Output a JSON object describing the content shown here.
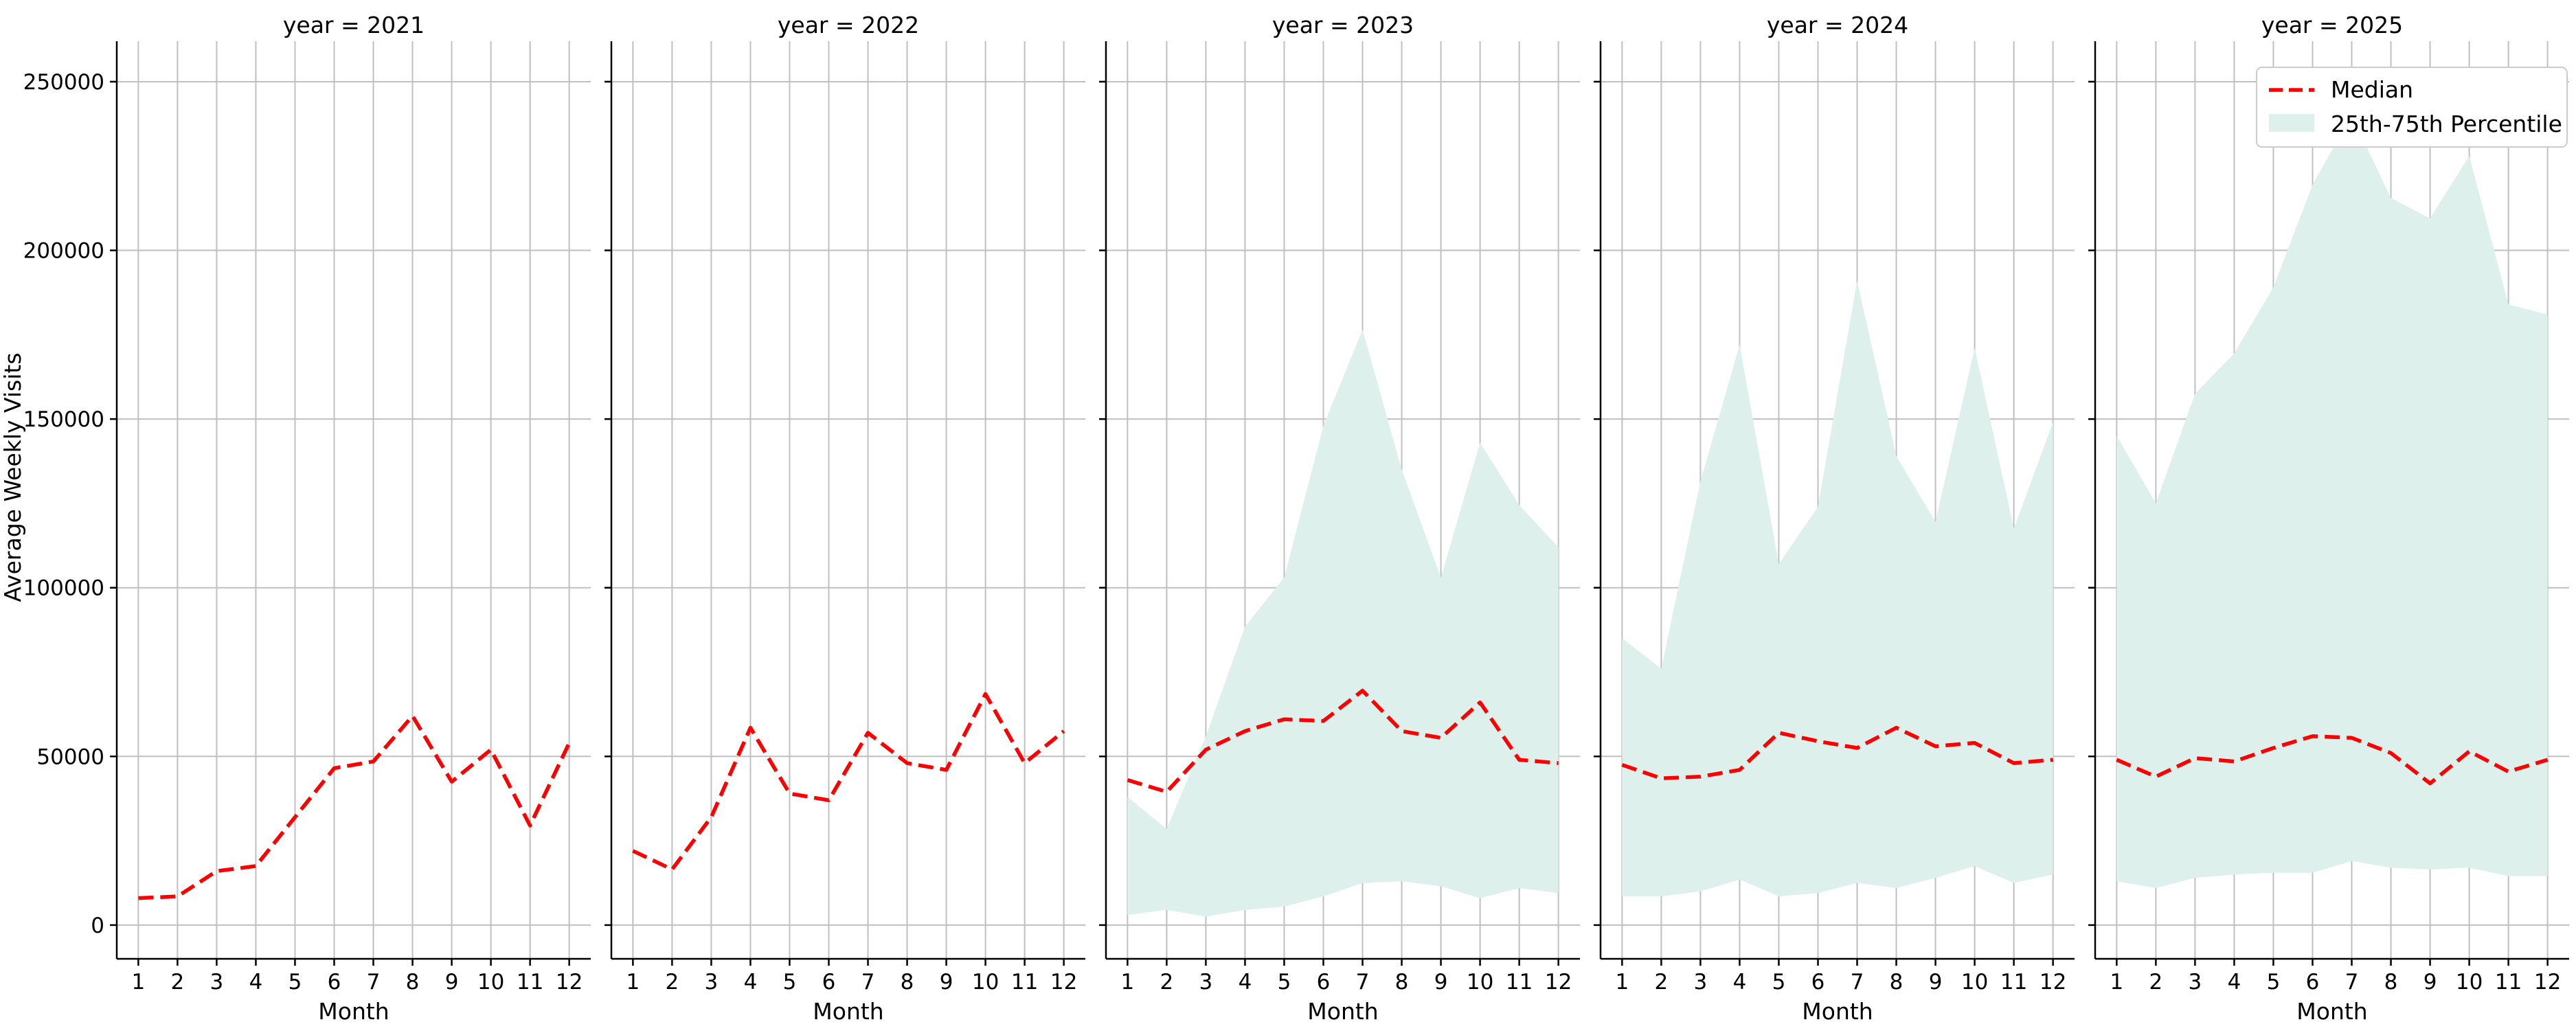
{
  "chart_data": [
    {
      "type": "line",
      "title": "year = 2021",
      "xlabel": "Month",
      "ylabel": "Average Weekly Visits",
      "x": [
        1,
        2,
        3,
        4,
        5,
        6,
        7,
        8,
        9,
        10,
        11,
        12
      ],
      "series": [
        {
          "name": "Median",
          "values": [
            8000,
            8500,
            16000,
            17500,
            32000,
            46500,
            48500,
            62000,
            42500,
            52000,
            29500,
            54000
          ]
        }
      ],
      "band": null,
      "ylim": [
        -10000,
        262000
      ],
      "xlim": [
        0.45,
        12.55
      ],
      "yticks": [
        0,
        50000,
        100000,
        150000,
        200000,
        250000
      ],
      "grid": true
    },
    {
      "type": "line",
      "title": "year = 2022",
      "xlabel": "Month",
      "ylabel": "",
      "x": [
        1,
        2,
        3,
        4,
        5,
        6,
        7,
        8,
        9,
        10,
        11,
        12
      ],
      "series": [
        {
          "name": "Median",
          "values": [
            22000,
            16500,
            32000,
            58500,
            39000,
            37000,
            57000,
            48000,
            46000,
            68500,
            48000,
            57500
          ]
        }
      ],
      "band": null,
      "ylim": [
        -10000,
        262000
      ],
      "xlim": [
        0.45,
        12.55
      ],
      "yticks": [
        0,
        50000,
        100000,
        150000,
        200000,
        250000
      ],
      "grid": true
    },
    {
      "type": "line",
      "title": "year = 2023",
      "xlabel": "Month",
      "ylabel": "",
      "x": [
        1,
        2,
        3,
        4,
        5,
        6,
        7,
        8,
        9,
        10,
        11,
        12
      ],
      "series": [
        {
          "name": "Median",
          "values": [
            43000,
            39500,
            52000,
            57500,
            61000,
            60500,
            69500,
            57500,
            55500,
            66000,
            49000,
            48000
          ]
        }
      ],
      "band": {
        "name": "25th-75th Percentile",
        "low": [
          3000,
          4500,
          2500,
          4500,
          5500,
          8500,
          12500,
          13000,
          11500,
          8000,
          11000,
          9500
        ],
        "high": [
          38000,
          28500,
          56000,
          88500,
          103000,
          148000,
          176500,
          135000,
          103000,
          143000,
          124500,
          112000
        ]
      },
      "ylim": [
        -10000,
        262000
      ],
      "xlim": [
        0.45,
        12.55
      ],
      "yticks": [
        0,
        50000,
        100000,
        150000,
        200000,
        250000
      ],
      "grid": true
    },
    {
      "type": "line",
      "title": "year = 2024",
      "xlabel": "Month",
      "ylabel": "",
      "x": [
        1,
        2,
        3,
        4,
        5,
        6,
        7,
        8,
        9,
        10,
        11,
        12
      ],
      "series": [
        {
          "name": "Median",
          "values": [
            47500,
            43500,
            44000,
            46000,
            57000,
            54500,
            52500,
            58500,
            53000,
            54000,
            48000,
            49000
          ]
        }
      ],
      "band": {
        "name": "25th-75th Percentile",
        "low": [
          8500,
          8500,
          10000,
          13500,
          8500,
          9500,
          12500,
          11000,
          14000,
          17500,
          12500,
          15000
        ],
        "high": [
          85000,
          76000,
          131500,
          172000,
          107000,
          124000,
          191000,
          139000,
          119500,
          171000,
          117500,
          149000
        ]
      },
      "ylim": [
        -10000,
        262000
      ],
      "xlim": [
        0.45,
        12.55
      ],
      "yticks": [
        0,
        50000,
        100000,
        150000,
        200000,
        250000
      ],
      "grid": true
    },
    {
      "type": "line",
      "title": "year = 2025",
      "xlabel": "Month",
      "ylabel": "",
      "x": [
        1,
        2,
        3,
        4,
        5,
        6,
        7,
        8,
        9,
        10,
        11,
        12
      ],
      "series": [
        {
          "name": "Median",
          "values": [
            49000,
            44000,
            49500,
            48500,
            52500,
            56000,
            55500,
            51000,
            42000,
            51500,
            45500,
            49000
          ]
        }
      ],
      "band": {
        "name": "25th-75th Percentile",
        "low": [
          13000,
          11000,
          14000,
          15000,
          15500,
          15500,
          19000,
          17000,
          16500,
          17000,
          14500,
          14500
        ],
        "high": [
          145000,
          125000,
          157500,
          169500,
          189000,
          219500,
          240000,
          215500,
          209500,
          228000,
          184000,
          181000
        ]
      },
      "ylim": [
        -10000,
        262000
      ],
      "xlim": [
        0.45,
        12.55
      ],
      "yticks": [
        0,
        50000,
        100000,
        150000,
        200000,
        250000
      ],
      "grid": true
    }
  ],
  "legend": {
    "placement": "top-right",
    "median_label": "Median",
    "band_label": "25th-75th Percentile"
  },
  "colors": {
    "median": "#ff0000",
    "band": "#ddf0eb",
    "grid": "#c0c0c0",
    "axis": "#000000"
  }
}
